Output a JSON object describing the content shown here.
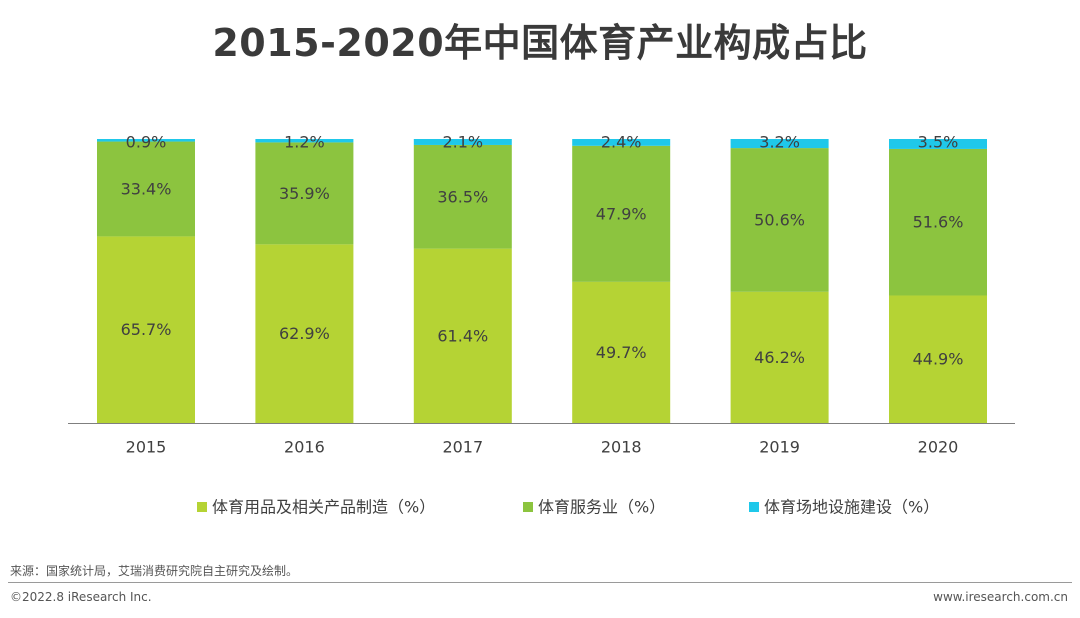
{
  "title": "2015-2020年中国体育产业构成占比",
  "source": "来源：国家统计局，艾瑞消费研究院自主研究及绘制。",
  "copyright": "©2022.8 iResearch Inc.",
  "website": "www.iresearch.com.cn",
  "colors": {
    "sporting_goods": "#b5d334",
    "sports_services": "#8cc43f",
    "venue_construction": "#1fc8ea",
    "axis": "#7f7f7f",
    "label": "#404040"
  },
  "chart_data": {
    "type": "bar",
    "stacked": true,
    "title": "2015-2020年中国体育产业构成占比",
    "categories": [
      "2015",
      "2016",
      "2017",
      "2018",
      "2019",
      "2020"
    ],
    "series": [
      {
        "name": "体育用品及相关产品制造（%）",
        "color": "#b5d334",
        "values": [
          65.7,
          62.9,
          61.4,
          49.7,
          46.2,
          44.9
        ],
        "labels": [
          "65.7%",
          "62.9%",
          "61.4%",
          "49.7%",
          "46.2%",
          "44.9%"
        ]
      },
      {
        "name": "体育服务业（%）",
        "color": "#8cc43f",
        "values": [
          33.4,
          35.9,
          36.5,
          47.9,
          50.6,
          51.6
        ],
        "labels": [
          "33.4%",
          "35.9%",
          "36.5%",
          "47.9%",
          "50.6%",
          "51.6%"
        ]
      },
      {
        "name": "体育场地设施建设（%）",
        "color": "#1fc8ea",
        "values": [
          0.9,
          1.2,
          2.1,
          2.4,
          3.2,
          3.5
        ],
        "labels": [
          "0.9%",
          "1.2%",
          "2.1%",
          "2.4%",
          "3.2%",
          "3.5%"
        ]
      }
    ],
    "ylim": [
      0,
      100
    ],
    "grid": false,
    "legend_position": "bottom"
  }
}
